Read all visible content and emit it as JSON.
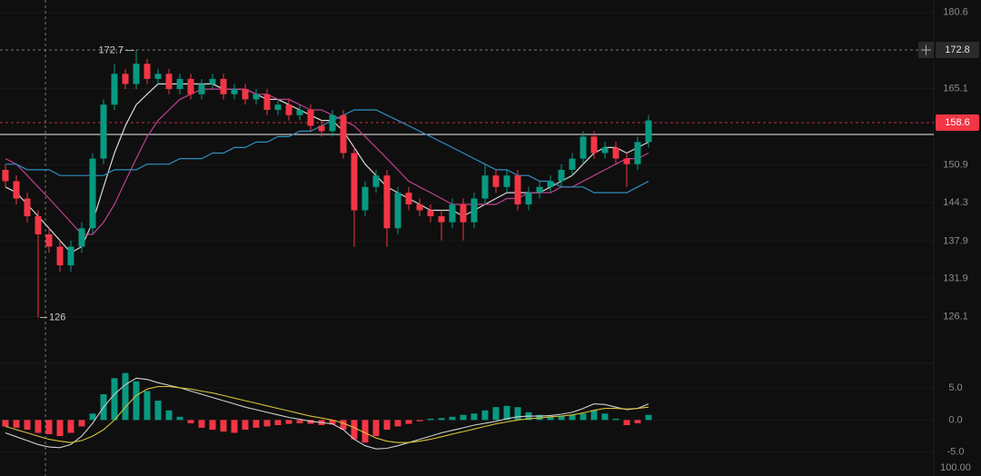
{
  "chart_data": {
    "type": "candlestick",
    "log_scale": true,
    "ylim": [
      120.0,
      183.3
    ],
    "yticks": [
      180.6,
      165.1,
      150.9,
      144.3,
      137.9,
      131.9,
      126.1
    ],
    "grid": true,
    "up_color": "#089981",
    "down_color": "#f23645",
    "open": [
      150,
      148,
      145,
      142,
      139,
      137,
      134,
      137,
      140,
      152,
      162,
      168,
      166,
      170,
      167,
      168,
      165,
      167,
      164,
      166,
      167,
      164,
      165,
      163,
      164,
      161,
      162,
      160,
      161,
      158,
      157,
      160,
      153,
      143,
      147,
      149,
      140,
      146,
      144,
      143,
      142,
      141,
      144,
      141,
      145,
      149,
      147,
      149,
      144,
      146,
      147,
      148,
      150,
      152,
      156,
      153,
      154,
      152,
      151,
      155
    ],
    "high": [
      151,
      149,
      146,
      143,
      140,
      138,
      138,
      141,
      153,
      163,
      170,
      169,
      172.7,
      171,
      169,
      169,
      168,
      168,
      167,
      168,
      168,
      166,
      166,
      165,
      165,
      163,
      163,
      162,
      162,
      159,
      161,
      161,
      154,
      148,
      150,
      150,
      147,
      147,
      145,
      144,
      143,
      145,
      145,
      146,
      151,
      150,
      150,
      150,
      147,
      148,
      149,
      151,
      153,
      157,
      157,
      155,
      155,
      153,
      156,
      160
    ],
    "low": [
      147,
      144,
      141,
      126,
      136,
      133,
      133,
      136,
      139,
      151,
      161,
      165,
      165,
      166,
      166,
      164,
      164,
      163,
      163,
      165,
      163,
      163,
      162,
      162,
      160,
      160,
      159,
      159,
      157,
      156,
      156,
      152,
      137,
      142,
      146,
      137,
      139,
      143,
      142,
      141,
      138,
      140,
      138,
      140,
      144,
      146,
      146,
      143,
      143,
      145,
      146,
      147,
      149,
      151,
      152,
      152,
      151,
      147,
      150,
      154
    ],
    "close": [
      148,
      145,
      142,
      139,
      137,
      134,
      137,
      140,
      152,
      162,
      168,
      166,
      170,
      167,
      168,
      165,
      167,
      164,
      166,
      167,
      164,
      165,
      163,
      164,
      161,
      162,
      160,
      161,
      158,
      157,
      160,
      153,
      143,
      147,
      149,
      140,
      146,
      144,
      143,
      142,
      141,
      144,
      141,
      145,
      149,
      147,
      149,
      144,
      146,
      147,
      148,
      150,
      152,
      156,
      153,
      154,
      152,
      151,
      155,
      159
    ],
    "ma_lines": [
      {
        "color": "#d8d8d8",
        "values": [
          147,
          146,
          144,
          142,
          140,
          138,
          136,
          137,
          141,
          147,
          153,
          158,
          162,
          164,
          166,
          166,
          166,
          166,
          166,
          166,
          165,
          165,
          165,
          164,
          163,
          163,
          162,
          161,
          160,
          159,
          159,
          157,
          154,
          151,
          149,
          147,
          146,
          145,
          144,
          143,
          143,
          143,
          142,
          143,
          144,
          145,
          146,
          146,
          146,
          146,
          147,
          148,
          149,
          151,
          153,
          154,
          154,
          153,
          154,
          155
        ]
      },
      {
        "color": "#c2408f",
        "values": [
          152,
          151,
          149,
          147,
          145,
          143,
          141,
          139,
          139,
          141,
          144,
          148,
          152,
          156,
          159,
          161,
          163,
          164,
          165,
          165,
          165,
          165,
          165,
          164,
          164,
          163,
          163,
          162,
          161,
          161,
          160,
          159,
          158,
          156,
          154,
          152,
          150,
          148,
          147,
          146,
          145,
          144,
          144,
          144,
          144,
          144,
          145,
          145,
          146,
          146,
          146,
          147,
          147,
          148,
          149,
          150,
          151,
          152,
          152,
          153
        ]
      },
      {
        "color": "#2f8fc4",
        "values": [
          151,
          151,
          150,
          150,
          150,
          149,
          149,
          149,
          149,
          149,
          150,
          150,
          150,
          151,
          151,
          151,
          152,
          152,
          152,
          153,
          153,
          154,
          154,
          155,
          155,
          156,
          156,
          157,
          157,
          158,
          159,
          160,
          161,
          161,
          161,
          160,
          159,
          158,
          157,
          156,
          155,
          154,
          153,
          152,
          151,
          150,
          150,
          149,
          149,
          148,
          148,
          147,
          147,
          147,
          146,
          146,
          146,
          146,
          147,
          148
        ]
      }
    ],
    "max_marker": 172.7,
    "min_marker": 126,
    "last_price": 158.6,
    "hline": 156.4,
    "crosshair": {
      "price": 172.8
    },
    "macd": {
      "ylim": [
        -8.7,
        8.8
      ],
      "yticks": [
        {
          "value": 5,
          "label": "5.0"
        },
        {
          "value": 0,
          "label": "0.0"
        },
        {
          "value": -5,
          "label": "-5.0"
        }
      ],
      "histogram": [
        -1,
        -1.2,
        -1.5,
        -2,
        -2.2,
        -2.5,
        -2,
        -1,
        1,
        4,
        6.5,
        7.3,
        6,
        4.5,
        3,
        1.5,
        0.5,
        -0.5,
        -1.2,
        -1.5,
        -1.8,
        -2,
        -1.5,
        -1.2,
        -1,
        -0.8,
        -0.6,
        -0.5,
        -0.6,
        -0.8,
        -0.7,
        -1.5,
        -3,
        -3.5,
        -2.5,
        -1.5,
        -1,
        -0.6,
        -0.2,
        0.2,
        0.3,
        0.5,
        0.8,
        1,
        1.5,
        2,
        2.2,
        2,
        1.2,
        0.8,
        0.5,
        0.6,
        0.8,
        1,
        1.5,
        1,
        0.2,
        -0.8,
        -0.5,
        0.8
      ],
      "macd_line": {
        "color": "#cfcfcf",
        "values": [
          -2,
          -2.6,
          -3.2,
          -3.8,
          -4.2,
          -4.3,
          -3.8,
          -2.5,
          -0.5,
          2,
          4,
          5.5,
          6.5,
          6.3,
          5.8,
          5.4,
          5,
          4.5,
          4,
          3.5,
          3,
          2.5,
          2,
          1.6,
          1.2,
          0.8,
          0.4,
          0.1,
          -0.2,
          -0.4,
          -0.6,
          -1.5,
          -3,
          -4,
          -4.5,
          -4.4,
          -4,
          -3.5,
          -3,
          -2.5,
          -2,
          -1.6,
          -1.2,
          -0.8,
          -0.5,
          -0.2,
          0.2,
          0.5,
          0.6,
          0.6,
          0.7,
          0.9,
          1.2,
          1.8,
          2.5,
          2.4,
          2,
          1.6,
          1.8,
          2.5
        ]
      },
      "signal_line": {
        "color": "#d8c23a",
        "values": [
          -1,
          -1.5,
          -2,
          -2.5,
          -3,
          -3.3,
          -3.5,
          -3.2,
          -2.5,
          -1.5,
          0,
          2,
          3.8,
          4.8,
          5.2,
          5.2,
          5,
          4.8,
          4.5,
          4.2,
          3.8,
          3.4,
          3,
          2.6,
          2.2,
          1.8,
          1.4,
          1,
          0.6,
          0.3,
          0,
          -0.5,
          -1.2,
          -2,
          -2.8,
          -3.3,
          -3.5,
          -3.5,
          -3.3,
          -3,
          -2.6,
          -2.2,
          -1.8,
          -1.4,
          -1,
          -0.6,
          -0.3,
          0,
          0.2,
          0.3,
          0.5,
          0.6,
          0.8,
          1.1,
          1.5,
          1.8,
          1.8,
          1.7,
          1.8,
          2
        ]
      }
    },
    "bottom_label": "100.00"
  }
}
